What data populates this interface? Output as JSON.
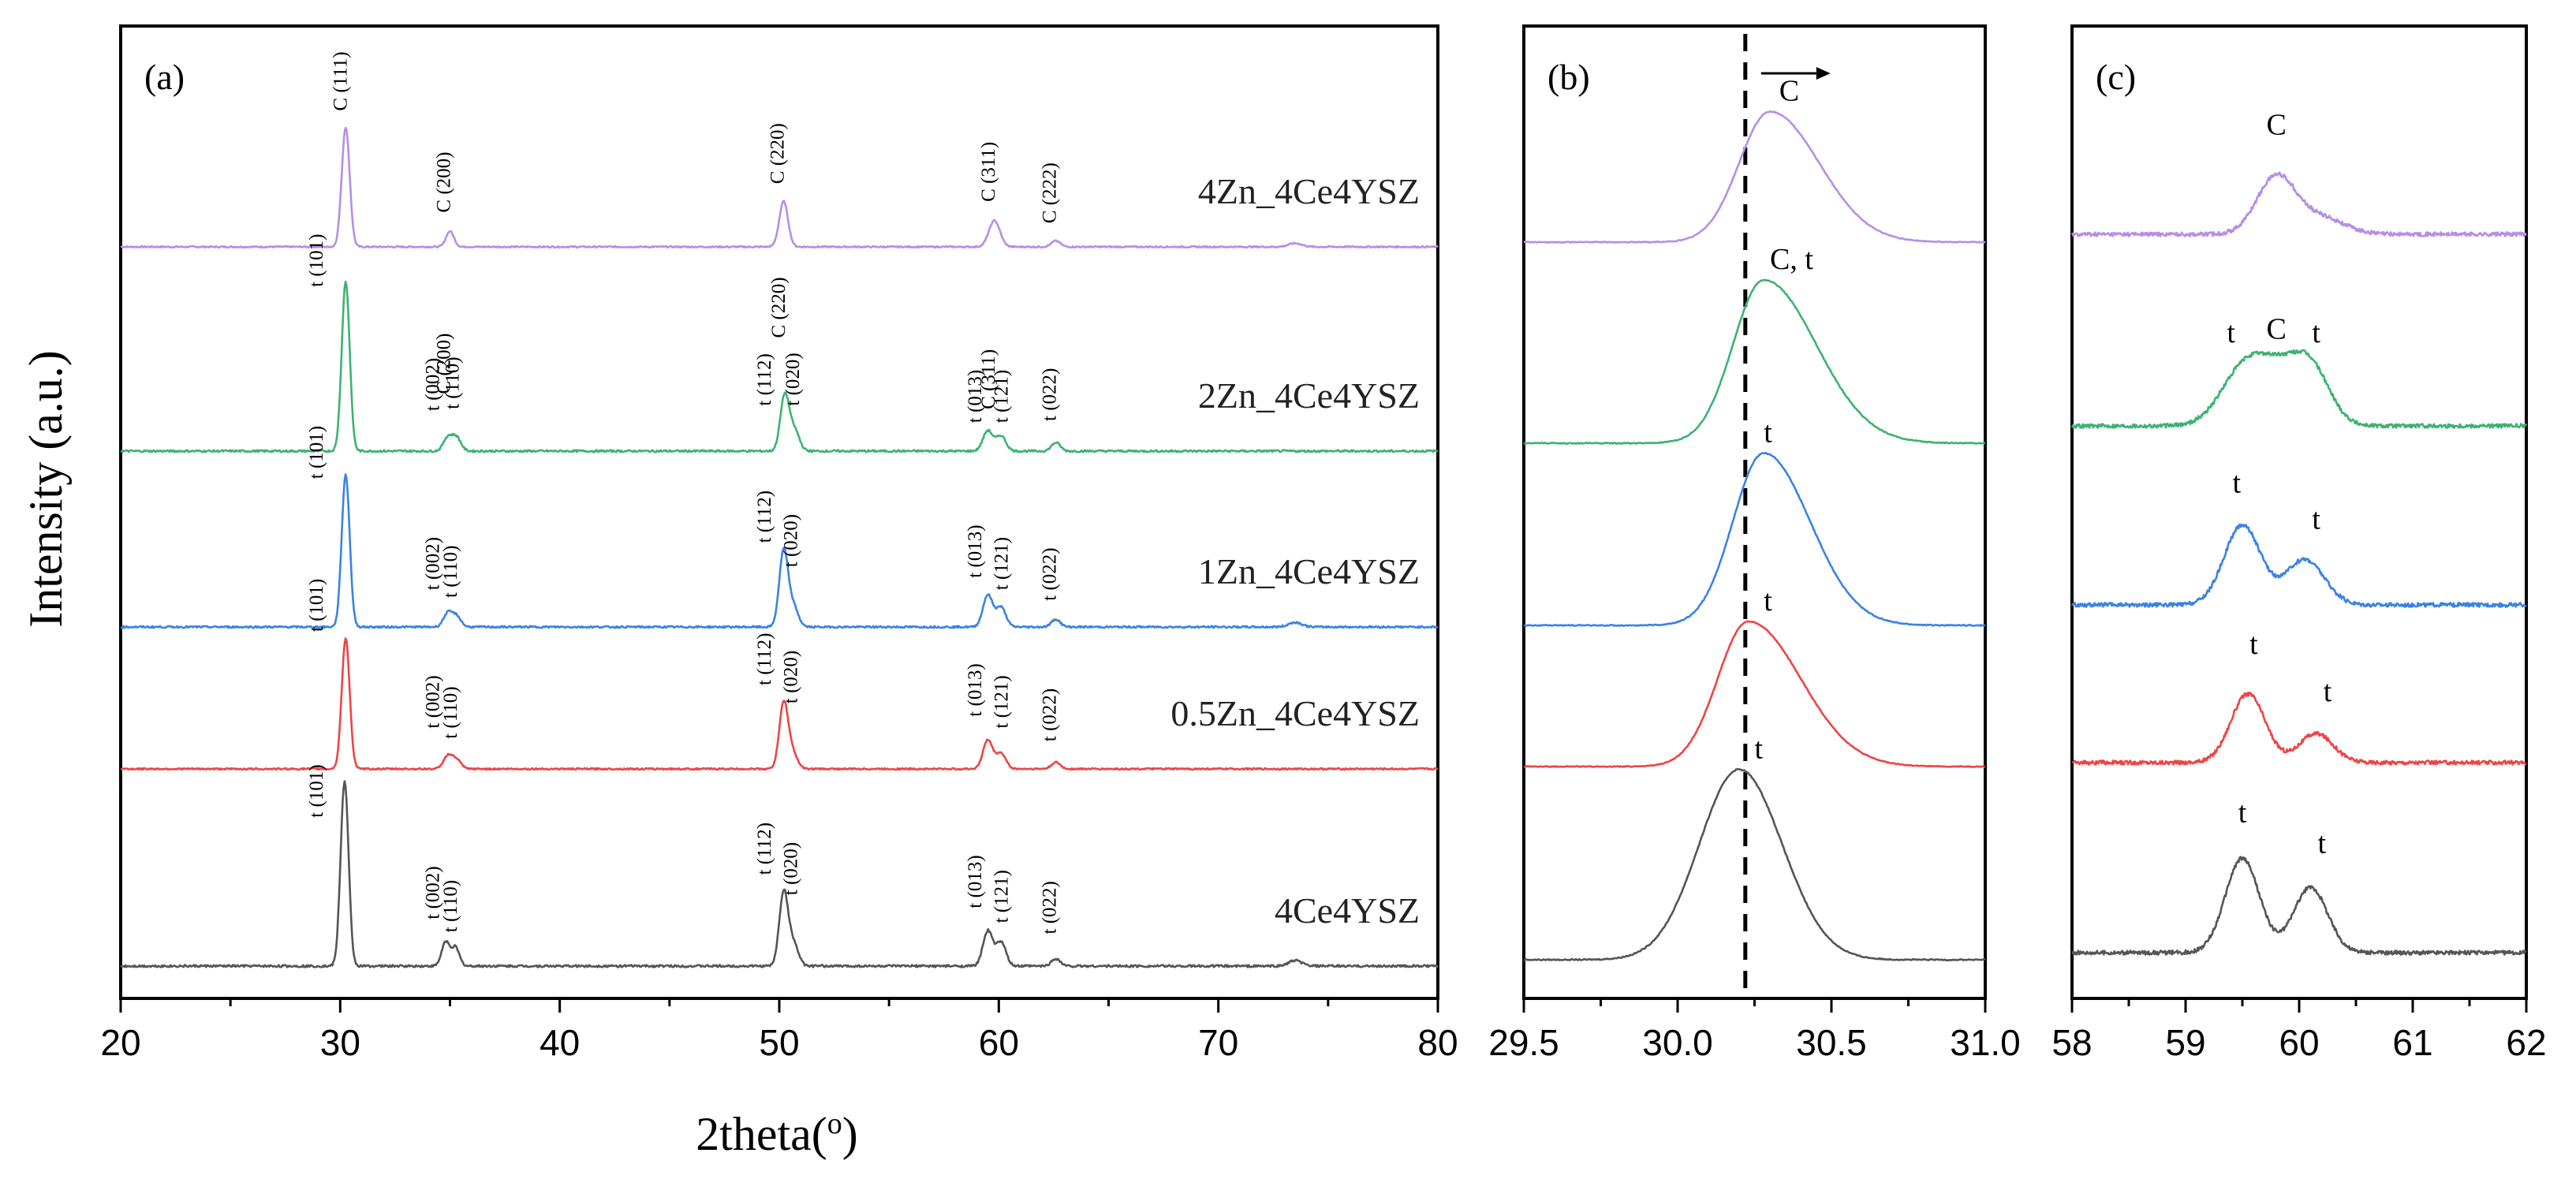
{
  "chart_data": [
    {
      "id": "a",
      "type": "line",
      "panel_label": "(a)",
      "xlabel": "2theta(o)",
      "ylabel": "Intensity (a.u.)",
      "xlim": [
        20,
        80
      ],
      "x_ticks": [
        20,
        30,
        40,
        50,
        60,
        70,
        80
      ],
      "x_tick_labels": [
        "20",
        "30",
        "40",
        "50",
        "60",
        "70",
        "80"
      ],
      "y_ticks_shown": false,
      "series": [
        {
          "name": "4Zn_4Ce4YSZ",
          "color": "#b58fe6",
          "offset": 4,
          "peak_height": 0.55,
          "peaks": [
            {
              "pos": 30.25,
              "rel": 1.0,
              "w": 0.18
            },
            {
              "pos": 35.0,
              "rel": 0.13,
              "w": 0.18
            },
            {
              "pos": 50.2,
              "rel": 0.38,
              "w": 0.2
            },
            {
              "pos": 59.8,
              "rel": 0.22,
              "w": 0.25
            },
            {
              "pos": 62.6,
              "rel": 0.05,
              "w": 0.2
            },
            {
              "pos": 73.5,
              "rel": 0.03,
              "w": 0.3
            }
          ],
          "annotations": [
            {
              "text": "C (111)",
              "x": 30.3,
              "rel": 1.07
            },
            {
              "text": "C (200)",
              "x": 35.0,
              "rel": 0.22
            },
            {
              "text": "C (220)",
              "x": 50.2,
              "rel": 0.46
            },
            {
              "text": "C (311)",
              "x": 59.8,
              "rel": 0.31
            },
            {
              "text": "C (222)",
              "x": 62.6,
              "rel": 0.13
            }
          ]
        },
        {
          "name": "2Zn_4Ce4YSZ",
          "color": "#3cb371",
          "offset": 3,
          "peak_height": 0.78,
          "peaks": [
            {
              "pos": 30.25,
              "rel": 1.0,
              "w": 0.18
            },
            {
              "pos": 34.9,
              "rel": 0.08,
              "w": 0.2
            },
            {
              "pos": 35.3,
              "rel": 0.08,
              "w": 0.2
            },
            {
              "pos": 50.25,
              "rel": 0.33,
              "w": 0.2
            },
            {
              "pos": 50.7,
              "rel": 0.12,
              "w": 0.22
            },
            {
              "pos": 59.5,
              "rel": 0.12,
              "w": 0.22
            },
            {
              "pos": 60.1,
              "rel": 0.09,
              "w": 0.22
            },
            {
              "pos": 62.6,
              "rel": 0.05,
              "w": 0.2
            }
          ],
          "annotations": [
            {
              "text": "t (101)",
              "x": 29.2,
              "rel": 0.92
            },
            {
              "text": "t (002)",
              "x": 34.5,
              "rel": 0.19
            },
            {
              "text": "C (200)",
              "x": 35.0,
              "rel": 0.29
            },
            {
              "text": "t (110)",
              "x": 35.4,
              "rel": 0.2
            },
            {
              "text": "t (112)",
              "x": 49.6,
              "rel": 0.22
            },
            {
              "text": "C (220)",
              "x": 50.25,
              "rel": 0.62
            },
            {
              "text": "t (020)",
              "x": 50.9,
              "rel": 0.22
            },
            {
              "text": "t (013)",
              "x": 59.2,
              "rel": 0.12
            },
            {
              "text": "C (311)",
              "x": 59.8,
              "rel": 0.2
            },
            {
              "text": "t (121)",
              "x": 60.4,
              "rel": 0.12
            },
            {
              "text": "t (022)",
              "x": 62.6,
              "rel": 0.13
            }
          ]
        },
        {
          "name": "1Zn_4Ce4YSZ",
          "color": "#3b82e6",
          "offset": 2,
          "peak_height": 0.7,
          "peaks": [
            {
              "pos": 30.25,
              "rel": 1.0,
              "w": 0.18
            },
            {
              "pos": 34.9,
              "rel": 0.09,
              "w": 0.2
            },
            {
              "pos": 35.3,
              "rel": 0.07,
              "w": 0.2
            },
            {
              "pos": 50.2,
              "rel": 0.5,
              "w": 0.2
            },
            {
              "pos": 50.65,
              "rel": 0.13,
              "w": 0.22
            },
            {
              "pos": 59.5,
              "rel": 0.21,
              "w": 0.22
            },
            {
              "pos": 60.1,
              "rel": 0.13,
              "w": 0.22
            },
            {
              "pos": 62.6,
              "rel": 0.05,
              "w": 0.2
            },
            {
              "pos": 73.5,
              "rel": 0.03,
              "w": 0.3
            }
          ],
          "annotations": [
            {
              "text": "t (101)",
              "x": 29.2,
              "rel": 0.92
            },
            {
              "text": "t (002)",
              "x": 34.5,
              "rel": 0.19
            },
            {
              "text": "t (110)",
              "x": 35.3,
              "rel": 0.14
            },
            {
              "text": "t (112)",
              "x": 49.6,
              "rel": 0.5
            },
            {
              "text": "t (020)",
              "x": 50.8,
              "rel": 0.34
            },
            {
              "text": "t (013)",
              "x": 59.2,
              "rel": 0.27
            },
            {
              "text": "t (121)",
              "x": 60.4,
              "rel": 0.19
            },
            {
              "text": "t (022)",
              "x": 62.6,
              "rel": 0.12
            }
          ]
        },
        {
          "name": "0.5Zn_4Ce4YSZ",
          "color": "#ef4444",
          "offset": 1,
          "peak_height": 0.6,
          "peaks": [
            {
              "pos": 30.25,
              "rel": 1.0,
              "w": 0.18
            },
            {
              "pos": 34.9,
              "rel": 0.1,
              "w": 0.2
            },
            {
              "pos": 35.3,
              "rel": 0.07,
              "w": 0.2
            },
            {
              "pos": 50.2,
              "rel": 0.5,
              "w": 0.2
            },
            {
              "pos": 50.6,
              "rel": 0.12,
              "w": 0.22
            },
            {
              "pos": 59.5,
              "rel": 0.22,
              "w": 0.22
            },
            {
              "pos": 60.1,
              "rel": 0.12,
              "w": 0.22
            },
            {
              "pos": 62.6,
              "rel": 0.05,
              "w": 0.2
            }
          ],
          "annotations": [
            {
              "text": "t (101)",
              "x": 29.2,
              "rel": 0.99
            },
            {
              "text": "t (002)",
              "x": 34.5,
              "rel": 0.25
            },
            {
              "text": "t (110)",
              "x": 35.3,
              "rel": 0.17
            },
            {
              "text": "t (112)",
              "x": 49.6,
              "rel": 0.58
            },
            {
              "text": "t (020)",
              "x": 50.8,
              "rel": 0.44
            },
            {
              "text": "t (013)",
              "x": 59.2,
              "rel": 0.34
            },
            {
              "text": "t (121)",
              "x": 60.4,
              "rel": 0.25
            },
            {
              "text": "t (022)",
              "x": 62.6,
              "rel": 0.15
            }
          ]
        },
        {
          "name": "4Ce4YSZ",
          "color": "#555555",
          "offset": 0,
          "peak_height": 0.85,
          "peaks": [
            {
              "pos": 30.2,
              "rel": 1.0,
              "w": 0.18
            },
            {
              "pos": 34.8,
              "rel": 0.13,
              "w": 0.18
            },
            {
              "pos": 35.25,
              "rel": 0.1,
              "w": 0.18
            },
            {
              "pos": 50.2,
              "rel": 0.4,
              "w": 0.2
            },
            {
              "pos": 50.65,
              "rel": 0.12,
              "w": 0.22
            },
            {
              "pos": 59.5,
              "rel": 0.19,
              "w": 0.22
            },
            {
              "pos": 60.1,
              "rel": 0.13,
              "w": 0.22
            },
            {
              "pos": 62.6,
              "rel": 0.04,
              "w": 0.2
            },
            {
              "pos": 73.5,
              "rel": 0.03,
              "w": 0.3
            }
          ],
          "annotations": [
            {
              "text": "t (101)",
              "x": 29.2,
              "rel": 0.76
            },
            {
              "text": "t (002)",
              "x": 34.5,
              "rel": 0.21
            },
            {
              "text": "t (110)",
              "x": 35.3,
              "rel": 0.14
            },
            {
              "text": "t (112)",
              "x": 49.6,
              "rel": 0.45
            },
            {
              "text": "t (020)",
              "x": 50.8,
              "rel": 0.34
            },
            {
              "text": "t (013)",
              "x": 59.2,
              "rel": 0.27
            },
            {
              "text": "t (121)",
              "x": 60.4,
              "rel": 0.19
            },
            {
              "text": "t (022)",
              "x": 62.6,
              "rel": 0.13
            }
          ]
        }
      ]
    },
    {
      "id": "b",
      "type": "line",
      "panel_label": "(b)",
      "xlim": [
        29.5,
        31.0
      ],
      "x_ticks": [
        29.5,
        30.0,
        30.5,
        31.0
      ],
      "x_tick_labels": [
        "29.5",
        "30.0",
        "30.5",
        "31.0"
      ],
      "dashed_line_x": 30.22,
      "arrow_direction": "right",
      "series": [
        {
          "name": "4Zn_4Ce4YSZ",
          "color": "#b58fe6",
          "offset": 4,
          "peak_height": 0.72,
          "center": 30.3,
          "sigma_left": 0.1,
          "sigma_right": 0.16,
          "label": "C",
          "label_x": 30.33
        },
        {
          "name": "2Zn_4Ce4YSZ",
          "color": "#3cb371",
          "offset": 3,
          "peak_height": 0.9,
          "center": 30.28,
          "sigma_left": 0.1,
          "sigma_right": 0.17,
          "label": "C, t",
          "label_x": 30.3
        },
        {
          "name": "1Zn_4Ce4YSZ",
          "color": "#3b82e6",
          "offset": 2,
          "peak_height": 0.95,
          "center": 30.28,
          "sigma_left": 0.1,
          "sigma_right": 0.15,
          "label": "t",
          "label_x": 30.28
        },
        {
          "name": "0.5Zn_4Ce4YSZ",
          "color": "#ef4444",
          "offset": 1,
          "peak_height": 0.8,
          "center": 30.23,
          "sigma_left": 0.1,
          "sigma_right": 0.17,
          "label": "t",
          "label_x": 30.28
        },
        {
          "name": "4Ce4YSZ",
          "color": "#555555",
          "offset": 0,
          "peak_height": 1.05,
          "center": 30.2,
          "sigma_left": 0.13,
          "sigma_right": 0.14,
          "label": "t",
          "label_x": 30.25
        }
      ]
    },
    {
      "id": "c",
      "type": "line",
      "panel_label": "(c)",
      "xlim": [
        58,
        62
      ],
      "x_ticks": [
        58,
        59,
        60,
        61,
        62
      ],
      "x_tick_labels": [
        "58",
        "59",
        "60",
        "61",
        "62"
      ],
      "series": [
        {
          "name": "4Zn_4Ce4YSZ",
          "color": "#b58fe6",
          "offset": 4,
          "peaks": [
            {
              "pos": 59.8,
              "h": 0.32,
              "w": 0.17
            },
            {
              "pos": 60.2,
              "h": 0.09,
              "w": 0.2
            }
          ],
          "labels": [
            {
              "text": "C",
              "x": 59.8,
              "rel": 0.55
            }
          ]
        },
        {
          "name": "2Zn_4Ce4YSZ",
          "color": "#3cb371",
          "offset": 3,
          "peaks": [
            {
              "pos": 59.5,
              "h": 0.28,
              "w": 0.2
            },
            {
              "pos": 59.8,
              "h": 0.24,
              "w": 0.2
            },
            {
              "pos": 60.1,
              "h": 0.3,
              "w": 0.17
            }
          ],
          "labels": [
            {
              "text": "t",
              "x": 59.4,
              "rel": 0.46
            },
            {
              "text": "C",
              "x": 59.8,
              "rel": 0.48
            },
            {
              "text": "t",
              "x": 60.15,
              "rel": 0.46
            }
          ]
        },
        {
          "name": "1Zn_4Ce4YSZ",
          "color": "#3b82e6",
          "offset": 2,
          "peaks": [
            {
              "pos": 59.5,
              "h": 0.44,
              "w": 0.16
            },
            {
              "pos": 60.05,
              "h": 0.25,
              "w": 0.17
            }
          ],
          "labels": [
            {
              "text": "t",
              "x": 59.45,
              "rel": 0.62
            },
            {
              "text": "t",
              "x": 60.15,
              "rel": 0.42
            }
          ]
        },
        {
          "name": "0.5Zn_4Ce4YSZ",
          "color": "#ef4444",
          "offset": 1,
          "peaks": [
            {
              "pos": 59.55,
              "h": 0.38,
              "w": 0.15
            },
            {
              "pos": 60.15,
              "h": 0.16,
              "w": 0.15
            }
          ],
          "labels": [
            {
              "text": "t",
              "x": 59.6,
              "rel": 0.6
            },
            {
              "text": "t",
              "x": 60.25,
              "rel": 0.34
            }
          ]
        },
        {
          "name": "4Ce4YSZ",
          "color": "#555555",
          "offset": 0,
          "peaks": [
            {
              "pos": 59.5,
              "h": 0.52,
              "w": 0.15
            },
            {
              "pos": 60.1,
              "h": 0.36,
              "w": 0.15
            }
          ],
          "labels": [
            {
              "text": "t",
              "x": 59.5,
              "rel": 0.72
            },
            {
              "text": "t",
              "x": 60.2,
              "rel": 0.55
            }
          ]
        }
      ]
    }
  ]
}
